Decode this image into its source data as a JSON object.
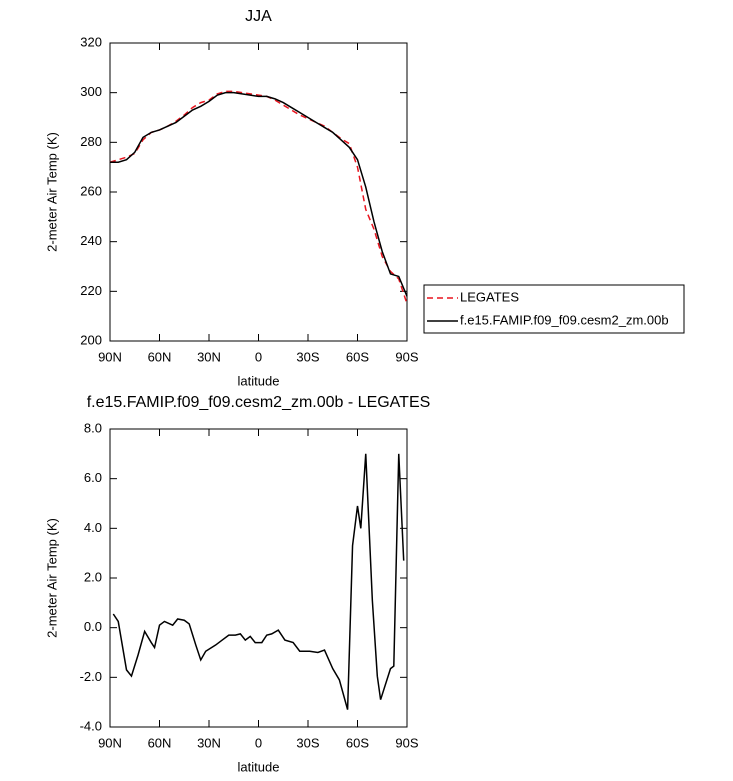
{
  "chart_data": [
    {
      "type": "line",
      "title": "JJA",
      "xlabel": "latitude",
      "ylabel": "2-meter Air Temp (K)",
      "x": [
        90,
        85,
        80,
        75,
        70,
        65,
        60,
        55,
        50,
        45,
        40,
        35,
        30,
        25,
        20,
        15,
        10,
        5,
        0,
        -5,
        -10,
        -15,
        -20,
        -25,
        -30,
        -35,
        -40,
        -45,
        -50,
        -55,
        -60,
        -65,
        -70,
        -75,
        -80,
        -85,
        -90
      ],
      "xlim": [
        90,
        -90
      ],
      "xticks": [
        {
          "value": 90,
          "label": "90N"
        },
        {
          "value": 60,
          "label": "60N"
        },
        {
          "value": 30,
          "label": "30N"
        },
        0,
        {
          "value": -30,
          "label": "30S"
        },
        {
          "value": -60,
          "label": "60S"
        },
        {
          "value": -90,
          "label": "90S"
        }
      ],
      "ylim": [
        200,
        320
      ],
      "yticks": [
        200,
        220,
        240,
        260,
        280,
        300,
        320
      ],
      "legend": "right",
      "series": [
        {
          "name": "LEGATES",
          "color": "#e8141e",
          "dashed": true,
          "values": [
            272,
            273,
            274,
            275.5,
            281,
            284,
            285,
            286.5,
            288.5,
            291,
            294,
            296,
            297,
            299.5,
            300.5,
            300.5,
            300,
            299.5,
            299,
            298.5,
            297,
            295,
            293,
            291,
            289.5,
            288,
            286.5,
            284,
            281.5,
            279.5,
            270,
            253,
            245,
            234,
            228,
            225,
            215
          ]
        },
        {
          "name": "f.e15.FAMIP.f09_f09.cesm2_zm.00b",
          "color": "#000000",
          "dashed": false,
          "values": [
            272,
            272,
            273,
            276,
            282,
            284,
            285,
            286.5,
            288,
            290.5,
            293,
            294.5,
            296.5,
            299,
            300,
            300,
            299.5,
            299,
            298.5,
            298.5,
            297.5,
            296,
            294,
            292,
            290,
            288,
            286,
            284,
            281,
            278,
            273,
            262,
            248,
            236,
            227,
            226,
            218
          ]
        }
      ]
    },
    {
      "type": "line",
      "title": "f.e15.FAMIP.f09_f09.cesm2_zm.00b - LEGATES",
      "xlabel": "latitude",
      "ylabel": "2-meter Air Temp (K)",
      "x": [
        88,
        85,
        80,
        77,
        73,
        69,
        65,
        63,
        60,
        57,
        52,
        49,
        45,
        42,
        38,
        35,
        32,
        26,
        22,
        18,
        14,
        11,
        8,
        5,
        2,
        -2,
        -5,
        -8,
        -12,
        -16,
        -21,
        -25,
        -31,
        -36,
        -40,
        -45,
        -49,
        -54,
        -57,
        -60,
        -62,
        -65,
        -69,
        -72,
        -74,
        -80,
        -82,
        -85,
        -88
      ],
      "xlim": [
        90,
        -90
      ],
      "xticks": [
        {
          "value": 90,
          "label": "90N"
        },
        {
          "value": 60,
          "label": "60N"
        },
        {
          "value": 30,
          "label": "30N"
        },
        0,
        {
          "value": -30,
          "label": "30S"
        },
        {
          "value": -60,
          "label": "60S"
        },
        {
          "value": -90,
          "label": "90S"
        }
      ],
      "ylim": [
        -4,
        8
      ],
      "yticks": [
        {
          "value": -4,
          "label": "-4.0"
        },
        {
          "value": -2,
          "label": "-2.0"
        },
        {
          "value": 0,
          "label": "0.0"
        },
        {
          "value": 2,
          "label": "2.0"
        },
        {
          "value": 4,
          "label": "4.0"
        },
        {
          "value": 6,
          "label": "6.0"
        },
        {
          "value": 8,
          "label": "8.0"
        }
      ],
      "series": [
        {
          "color": "#000000",
          "dashed": false,
          "values": [
            0.55,
            0.25,
            -1.7,
            -1.95,
            -1.1,
            -0.15,
            -0.6,
            -0.8,
            0.1,
            0.25,
            0.1,
            0.35,
            0.3,
            0.15,
            -0.7,
            -1.3,
            -0.95,
            -0.7,
            -0.5,
            -0.3,
            -0.3,
            -0.25,
            -0.5,
            -0.35,
            -0.6,
            -0.6,
            -0.3,
            -0.25,
            -0.1,
            -0.5,
            -0.6,
            -0.95,
            -0.95,
            -1.0,
            -0.9,
            -1.65,
            -2.1,
            -3.3,
            3.3,
            4.9,
            4.0,
            7.0,
            1.1,
            -1.95,
            -2.9,
            -1.65,
            -1.55,
            7.0,
            2.7
          ]
        }
      ]
    }
  ]
}
